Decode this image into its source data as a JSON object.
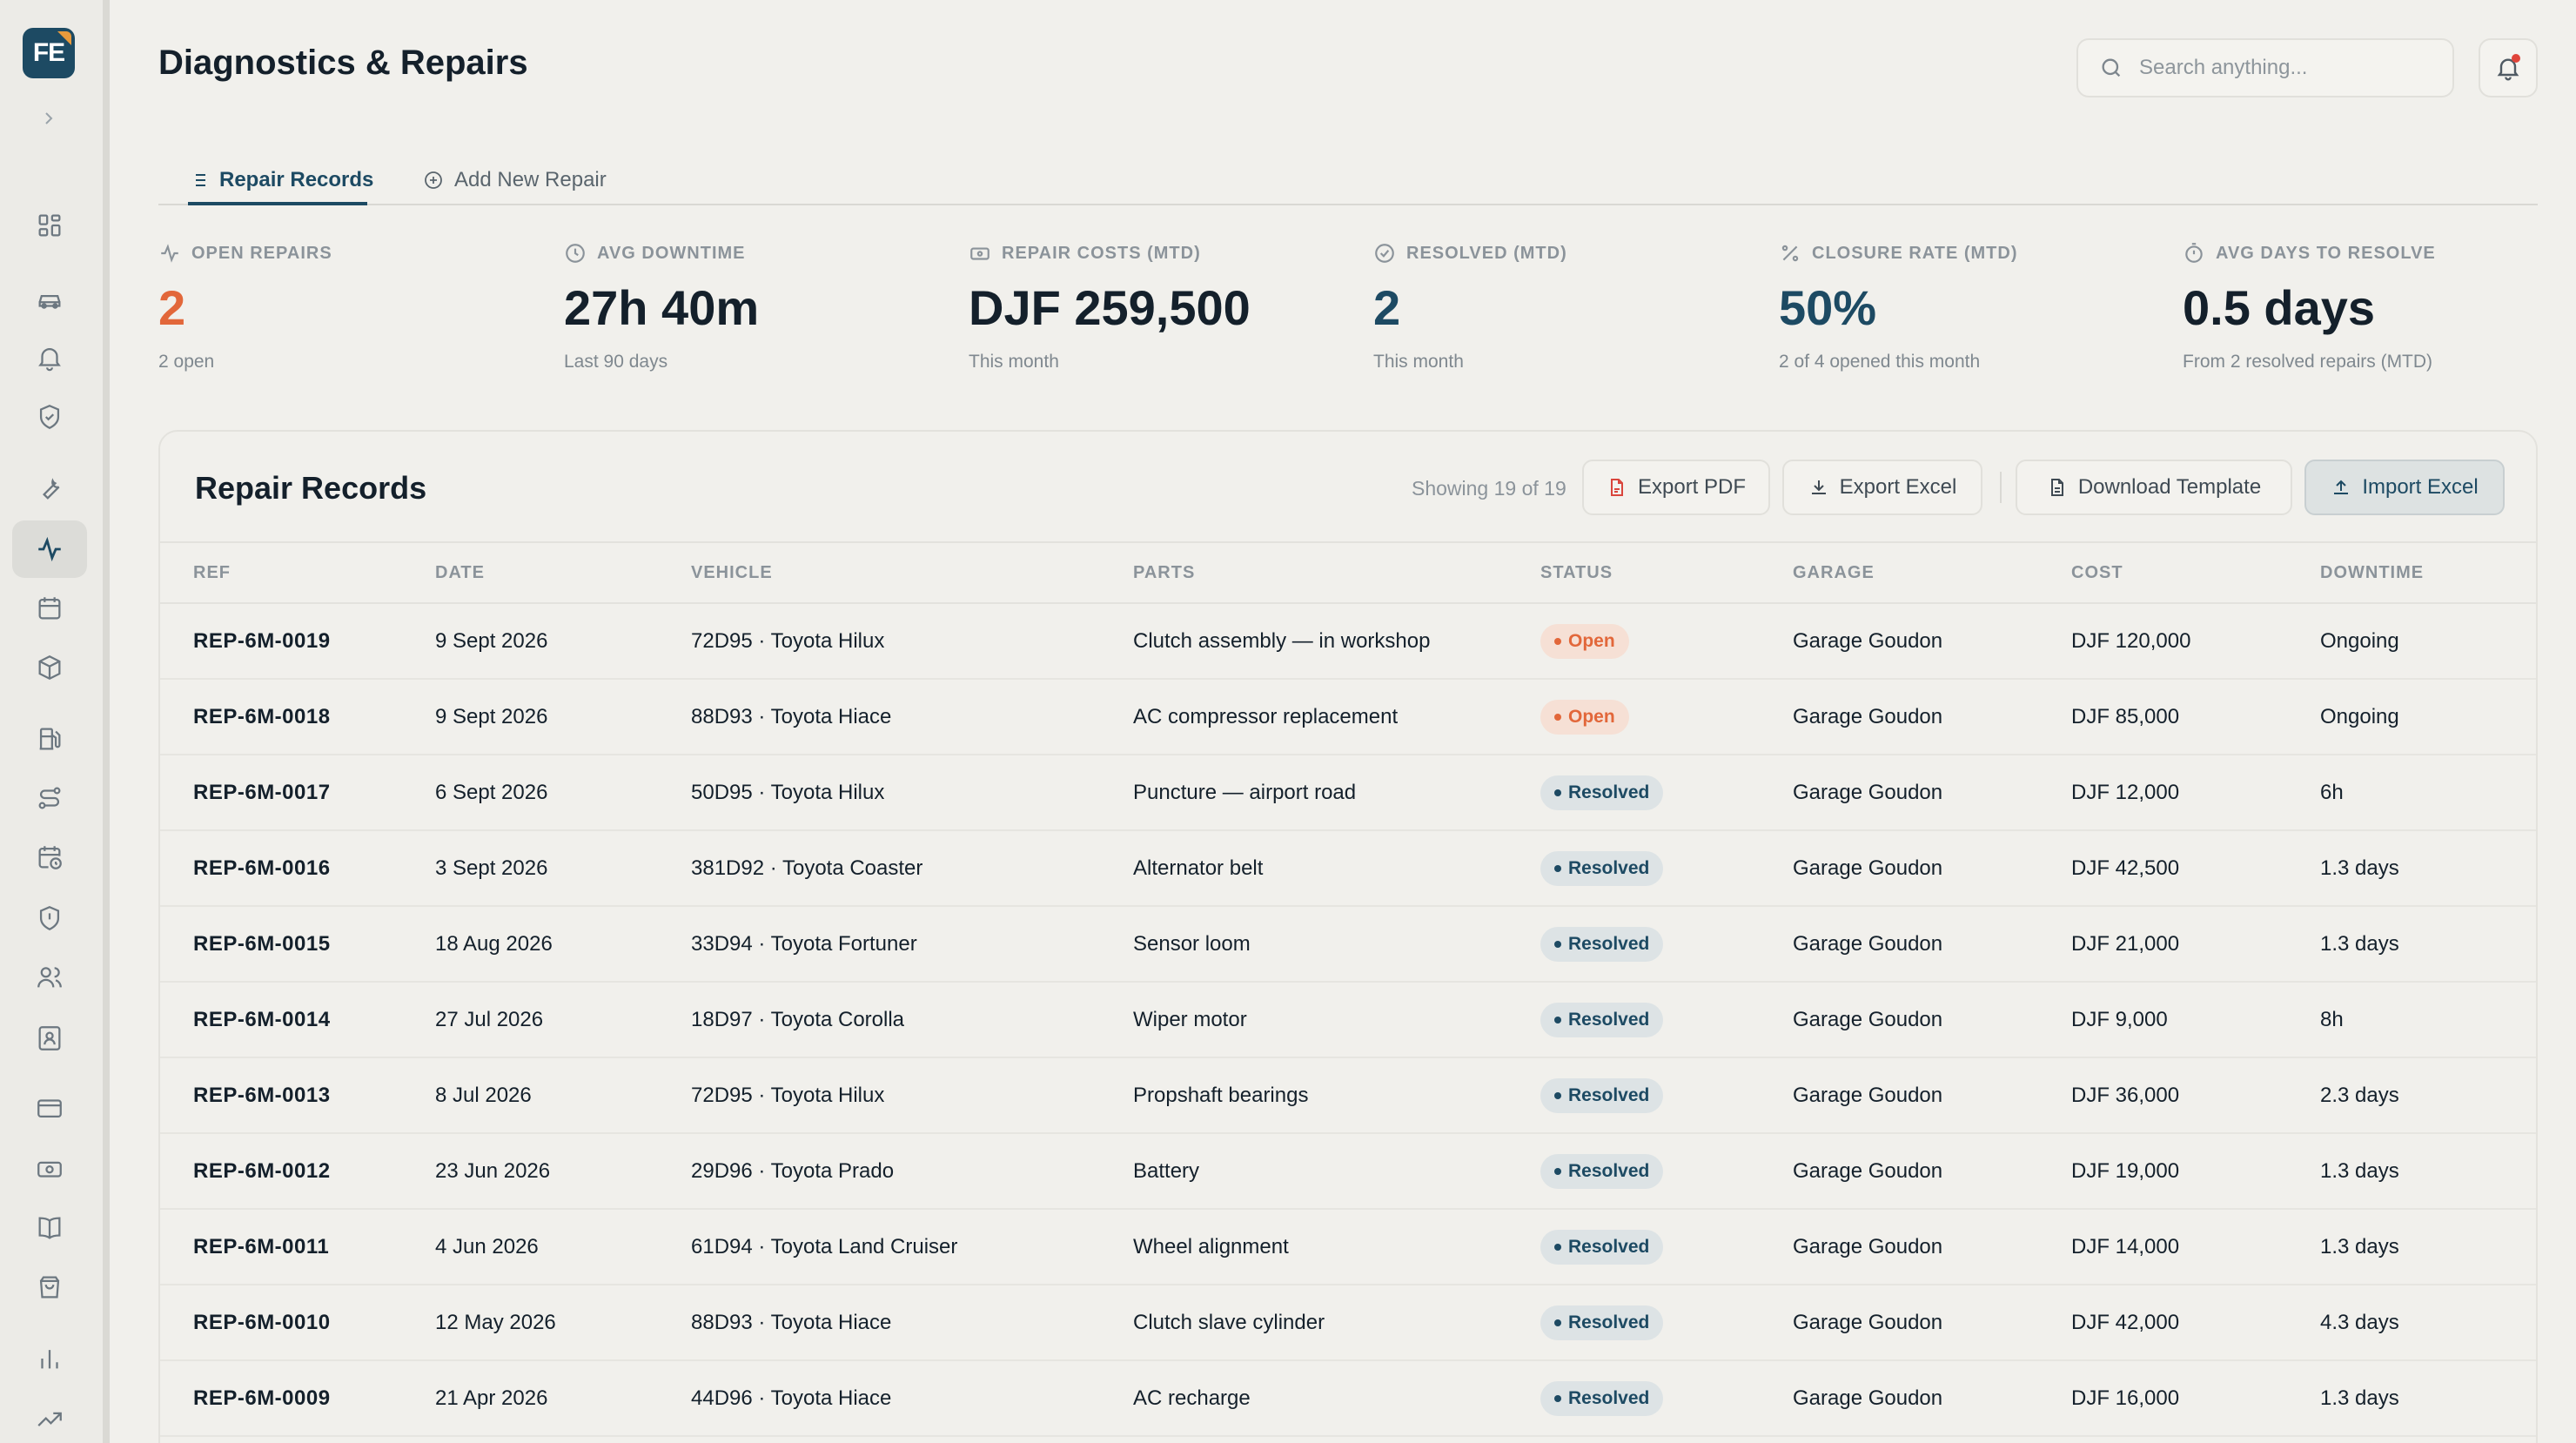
{
  "app": {
    "logo_text": "FE"
  },
  "header": {
    "title": "Diagnostics & Repairs",
    "search_placeholder": "Search anything..."
  },
  "tabs": [
    {
      "label": "Repair Records",
      "icon": "list-icon",
      "active": true
    },
    {
      "label": "Add New Repair",
      "icon": "plus-circle-icon",
      "active": false
    }
  ],
  "kpis": [
    {
      "label": "OPEN REPAIRS",
      "icon": "activity-icon",
      "value": "2",
      "sub": "2 open",
      "color": "#e2673a"
    },
    {
      "label": "AVG DOWNTIME",
      "icon": "clock-icon",
      "value": "27h 40m",
      "sub": "Last 90 days"
    },
    {
      "label": "REPAIR COSTS (MTD)",
      "icon": "banknote-icon",
      "value": "DJF 259,500",
      "sub": "This month"
    },
    {
      "label": "RESOLVED (MTD)",
      "icon": "check-circle-icon",
      "value": "2",
      "sub": "This month",
      "color": "#1d4a63"
    },
    {
      "label": "CLOSURE RATE (MTD)",
      "icon": "percent-icon",
      "value": "50%",
      "sub": "2 of 4 opened this month",
      "color": "#1d4a63"
    },
    {
      "label": "AVG DAYS TO RESOLVE",
      "icon": "timer-icon",
      "value": "0.5 days",
      "sub": "From 2 resolved repairs (MTD)"
    }
  ],
  "records": {
    "title": "Repair Records",
    "showing": "Showing 19 of 19",
    "buttons": {
      "export_pdf": "Export PDF",
      "export_excel": "Export Excel",
      "download_template": "Download Template",
      "import_excel": "Import Excel"
    },
    "columns": [
      "REF",
      "DATE",
      "VEHICLE",
      "PARTS",
      "STATUS",
      "GARAGE",
      "COST",
      "DOWNTIME"
    ],
    "rows": [
      {
        "ref": "REP-6M-0019",
        "date": "9 Sept 2026",
        "vehicle": "72D95 · Toyota Hilux",
        "parts": "Clutch assembly — in workshop",
        "status": "Open",
        "garage": "Garage Goudon",
        "cost": "DJF 120,000",
        "downtime": "Ongoing"
      },
      {
        "ref": "REP-6M-0018",
        "date": "9 Sept 2026",
        "vehicle": "88D93 · Toyota Hiace",
        "parts": "AC compressor replacement",
        "status": "Open",
        "garage": "Garage Goudon",
        "cost": "DJF 85,000",
        "downtime": "Ongoing"
      },
      {
        "ref": "REP-6M-0017",
        "date": "6 Sept 2026",
        "vehicle": "50D95 · Toyota Hilux",
        "parts": "Puncture — airport road",
        "status": "Resolved",
        "garage": "Garage Goudon",
        "cost": "DJF 12,000",
        "downtime": "6h"
      },
      {
        "ref": "REP-6M-0016",
        "date": "3 Sept 2026",
        "vehicle": "381D92 · Toyota Coaster",
        "parts": "Alternator belt",
        "status": "Resolved",
        "garage": "Garage Goudon",
        "cost": "DJF 42,500",
        "downtime": "1.3 days"
      },
      {
        "ref": "REP-6M-0015",
        "date": "18 Aug 2026",
        "vehicle": "33D94 · Toyota Fortuner",
        "parts": "Sensor loom",
        "status": "Resolved",
        "garage": "Garage Goudon",
        "cost": "DJF 21,000",
        "downtime": "1.3 days"
      },
      {
        "ref": "REP-6M-0014",
        "date": "27 Jul 2026",
        "vehicle": "18D97 · Toyota Corolla",
        "parts": "Wiper motor",
        "status": "Resolved",
        "garage": "Garage Goudon",
        "cost": "DJF 9,000",
        "downtime": "8h"
      },
      {
        "ref": "REP-6M-0013",
        "date": "8 Jul 2026",
        "vehicle": "72D95 · Toyota Hilux",
        "parts": "Propshaft bearings",
        "status": "Resolved",
        "garage": "Garage Goudon",
        "cost": "DJF 36,000",
        "downtime": "2.3 days"
      },
      {
        "ref": "REP-6M-0012",
        "date": "23 Jun 2026",
        "vehicle": "29D96 · Toyota Prado",
        "parts": "Battery",
        "status": "Resolved",
        "garage": "Garage Goudon",
        "cost": "DJF 19,000",
        "downtime": "1.3 days"
      },
      {
        "ref": "REP-6M-0011",
        "date": "4 Jun 2026",
        "vehicle": "61D94 · Toyota Land Cruiser",
        "parts": "Wheel alignment",
        "status": "Resolved",
        "garage": "Garage Goudon",
        "cost": "DJF 14,000",
        "downtime": "1.3 days"
      },
      {
        "ref": "REP-6M-0010",
        "date": "12 May 2026",
        "vehicle": "88D93 · Toyota Hiace",
        "parts": "Clutch slave cylinder",
        "status": "Resolved",
        "garage": "Garage Goudon",
        "cost": "DJF 42,000",
        "downtime": "4.3 days"
      },
      {
        "ref": "REP-6M-0009",
        "date": "21 Apr 2026",
        "vehicle": "44D96 · Toyota Hiace",
        "parts": "AC recharge",
        "status": "Resolved",
        "garage": "Garage Goudon",
        "cost": "DJF 16,000",
        "downtime": "1.3 days"
      }
    ]
  },
  "sidebar": {
    "items": [
      {
        "icon": "dashboard-icon"
      },
      {
        "icon": "car-icon"
      },
      {
        "icon": "bell-icon"
      },
      {
        "icon": "shield-check-icon"
      },
      {
        "icon": "wrench-icon"
      },
      {
        "icon": "pulse-icon",
        "active": true
      },
      {
        "icon": "calendar-icon"
      },
      {
        "icon": "package-icon"
      },
      {
        "icon": "fuel-icon"
      },
      {
        "icon": "route-icon"
      },
      {
        "icon": "calendar-clock-icon"
      },
      {
        "icon": "shield-alert-icon"
      },
      {
        "icon": "users-icon"
      },
      {
        "icon": "id-badge-icon"
      },
      {
        "icon": "credit-card-icon"
      },
      {
        "icon": "cash-icon"
      },
      {
        "icon": "book-icon"
      },
      {
        "icon": "shopping-bag-icon"
      },
      {
        "icon": "bar-chart-icon"
      },
      {
        "icon": "trend-up-icon"
      }
    ]
  },
  "colors": {
    "accent": "#1d4a63",
    "open": "#e2673a",
    "background": "#f1f0ec"
  }
}
